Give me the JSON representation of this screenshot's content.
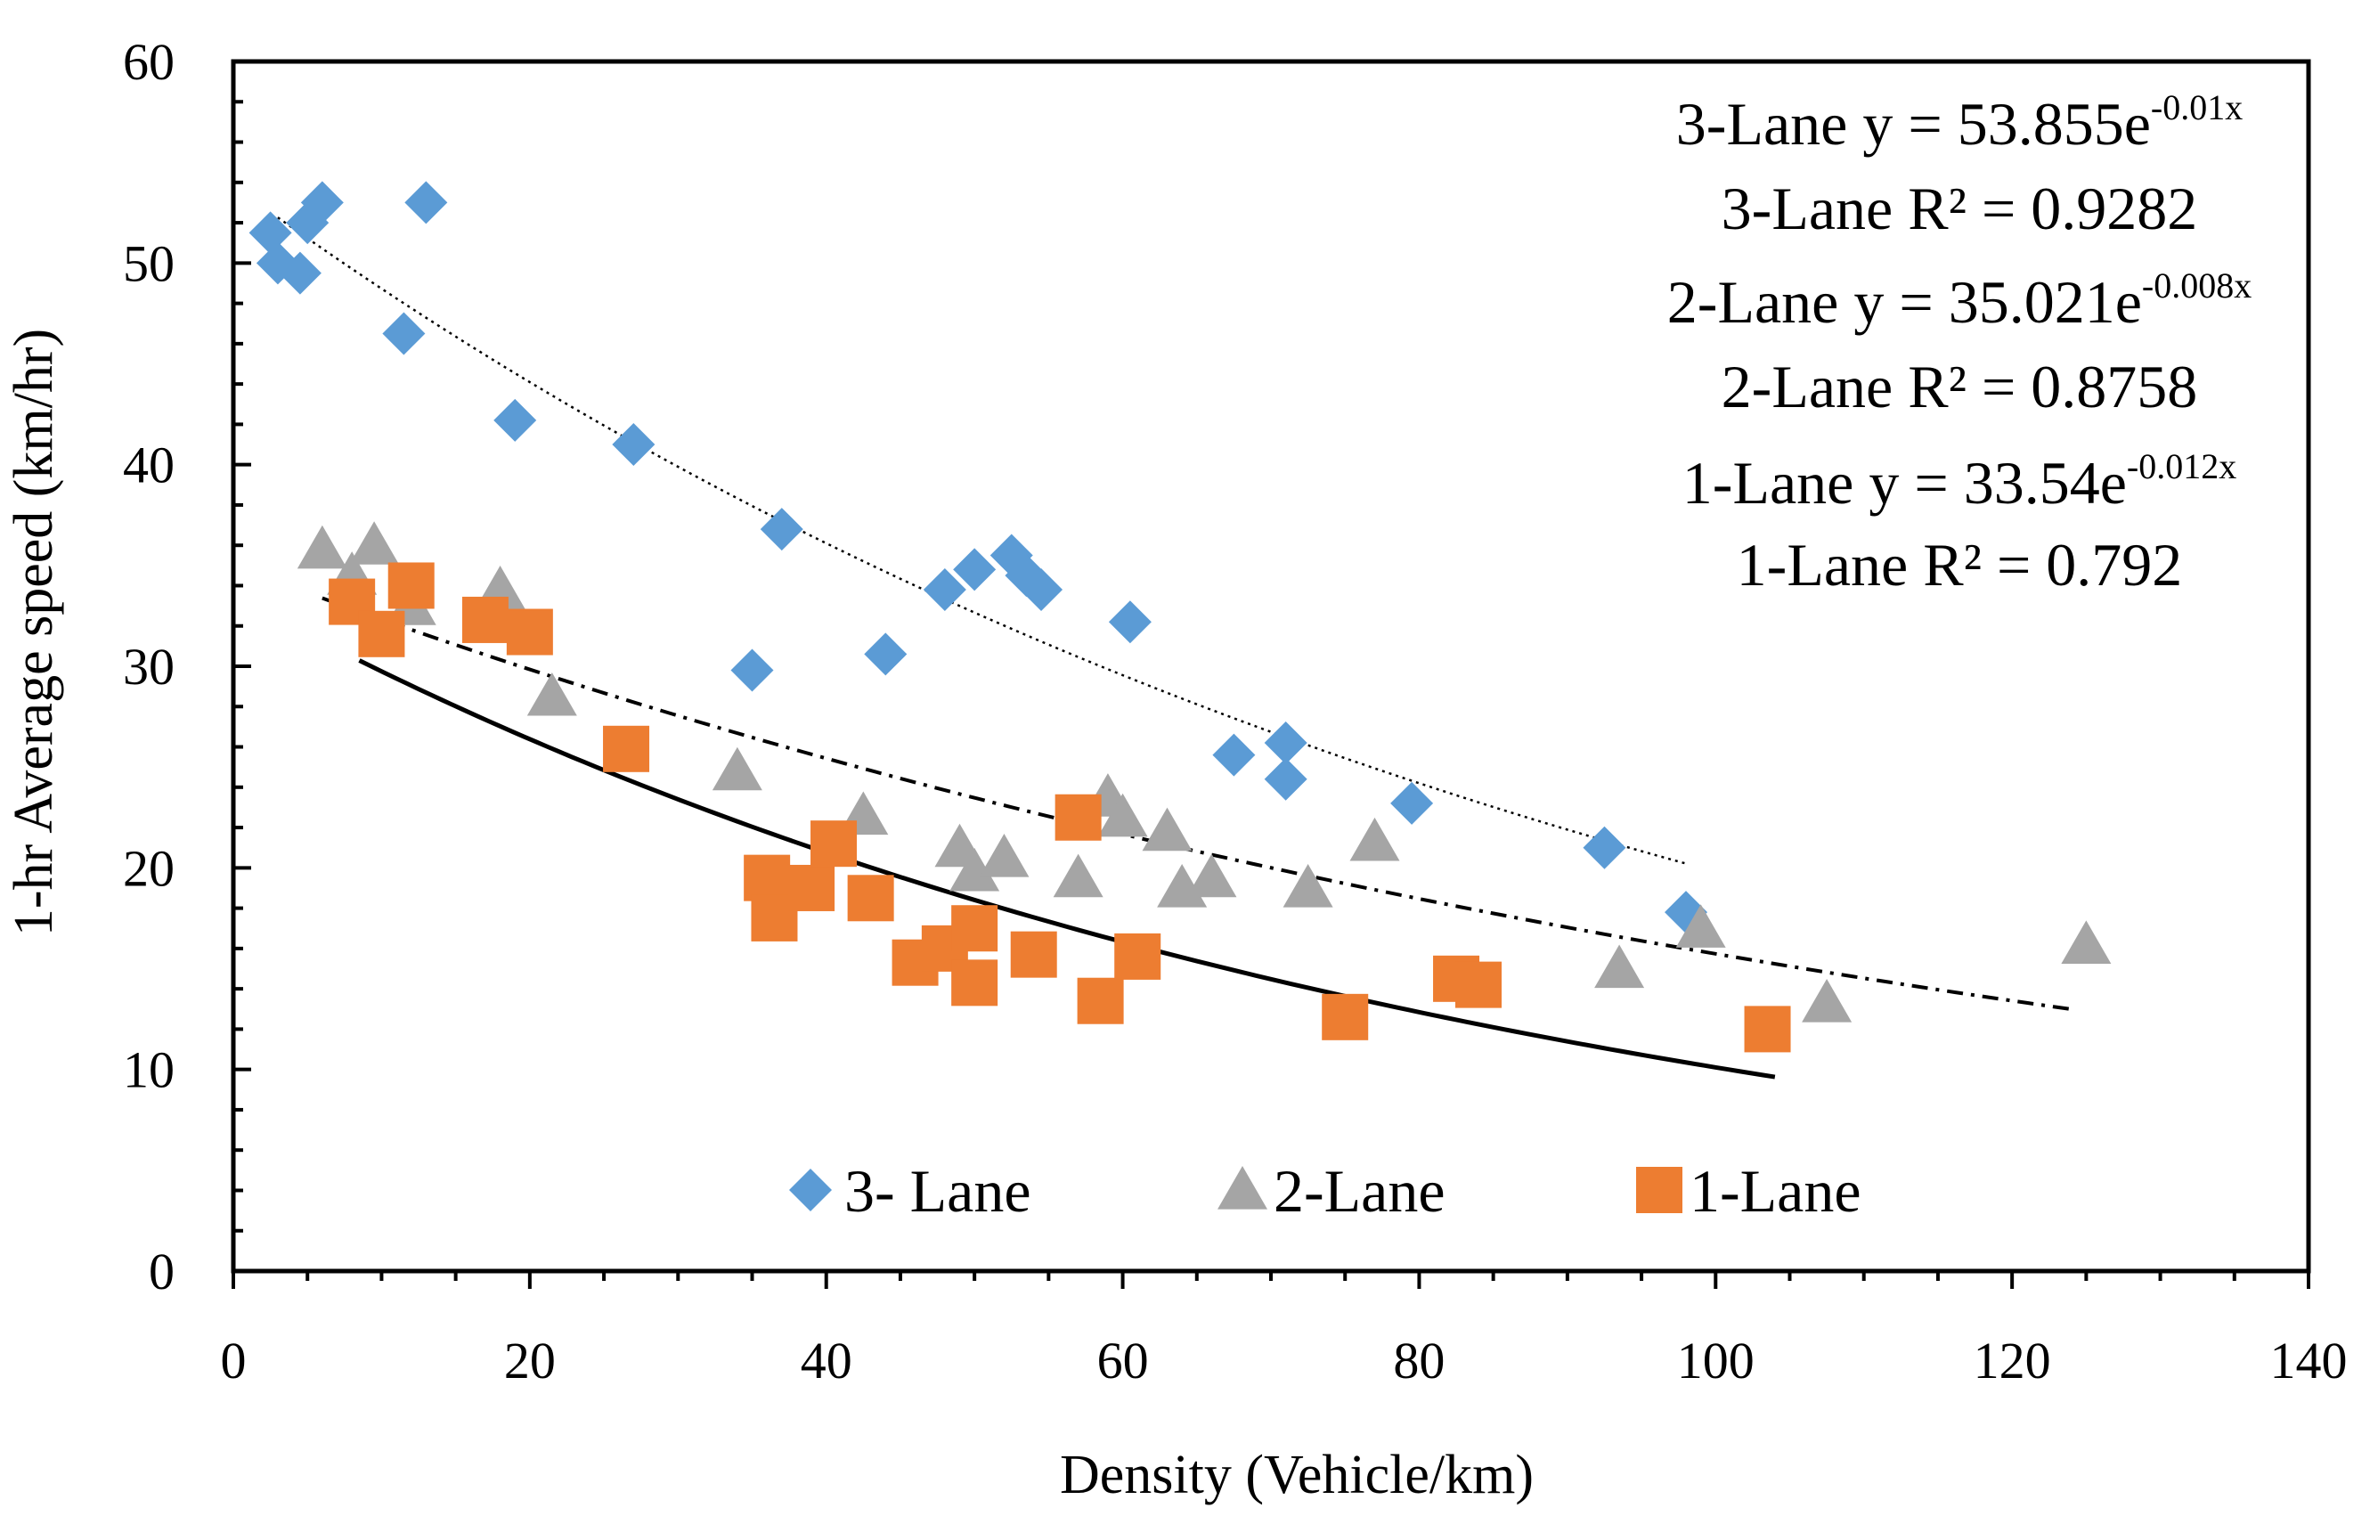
{
  "chart_data": {
    "type": "scatter",
    "title": "",
    "xlabel": "Density (Vehicle/km)",
    "ylabel": "1-hr Average speed (km/hr)",
    "xlim": [
      0,
      140
    ],
    "ylim": [
      0,
      60
    ],
    "x_ticks": [
      "0",
      "20",
      "40",
      "60",
      "80",
      "100",
      "120",
      "140"
    ],
    "y_ticks": [
      "0",
      "10",
      "20",
      "30",
      "40",
      "50",
      "60"
    ],
    "grid": false,
    "legend_position": "bottom-center",
    "colors": {
      "three_lane": "#5B9BD5",
      "two_lane": "#A5A5A5",
      "one_lane": "#ED7D31",
      "axis": "#000000"
    },
    "series": [
      {
        "name": "3- Lane",
        "marker": "diamond",
        "points": [
          [
            2.5,
            51.5
          ],
          [
            3,
            50
          ],
          [
            4.5,
            49.5
          ],
          [
            5,
            52
          ],
          [
            6,
            53
          ],
          [
            13,
            53
          ],
          [
            11.5,
            46.5
          ],
          [
            19,
            42.2
          ],
          [
            27,
            41
          ],
          [
            37,
            36.8
          ],
          [
            35,
            29.8
          ],
          [
            44,
            30.6
          ],
          [
            48,
            33.8
          ],
          [
            50,
            34.8
          ],
          [
            52.5,
            35.5
          ],
          [
            53.5,
            34.5
          ],
          [
            54.5,
            33.8
          ],
          [
            60.5,
            32.2
          ],
          [
            67.5,
            25.6
          ],
          [
            71,
            26.2
          ],
          [
            71,
            24.4
          ],
          [
            79.5,
            23.2
          ],
          [
            92.5,
            21
          ],
          [
            98,
            17.8
          ]
        ]
      },
      {
        "name": "2-Lane",
        "marker": "triangle",
        "points": [
          [
            6,
            35.8
          ],
          [
            8,
            34.5
          ],
          [
            9.5,
            36
          ],
          [
            12,
            33
          ],
          [
            18,
            33.8
          ],
          [
            21.5,
            28.5
          ],
          [
            34,
            24.8
          ],
          [
            42.5,
            22.6
          ],
          [
            49,
            21
          ],
          [
            50,
            19.8
          ],
          [
            52,
            20.5
          ],
          [
            57,
            19.5
          ],
          [
            59,
            23.5
          ],
          [
            60,
            22.5
          ],
          [
            63,
            21.8
          ],
          [
            64,
            19
          ],
          [
            66,
            19.5
          ],
          [
            72.5,
            19
          ],
          [
            77,
            21.3
          ],
          [
            93.5,
            15
          ],
          [
            99,
            17
          ],
          [
            107.5,
            13.3
          ],
          [
            125,
            16.2
          ]
        ]
      },
      {
        "name": "1-Lane",
        "marker": "square",
        "points": [
          [
            8,
            33.2
          ],
          [
            10,
            31.6
          ],
          [
            12,
            34
          ],
          [
            17,
            32.3
          ],
          [
            20,
            31.7
          ],
          [
            26.5,
            25.9
          ],
          [
            36,
            19.5
          ],
          [
            36.5,
            17.5
          ],
          [
            39,
            19
          ],
          [
            40.5,
            21.2
          ],
          [
            43,
            18.5
          ],
          [
            46,
            15.3
          ],
          [
            48,
            16
          ],
          [
            50,
            17
          ],
          [
            50,
            14.3
          ],
          [
            54,
            15.7
          ],
          [
            57,
            22.5
          ],
          [
            58.5,
            13.4
          ],
          [
            61,
            15.6
          ],
          [
            75,
            12.6
          ],
          [
            82.5,
            14.5
          ],
          [
            84,
            14.2
          ],
          [
            103.5,
            12
          ]
        ]
      }
    ],
    "trendlines": [
      {
        "series": "3- Lane",
        "a": 53.855,
        "b": -0.01,
        "x_range": [
          3,
          98
        ],
        "style": "dotted"
      },
      {
        "series": "2-Lane",
        "a": 35.021,
        "b": -0.008,
        "x_range": [
          6,
          124
        ],
        "style": "dash-dot"
      },
      {
        "series": "1-Lane",
        "a": 33.54,
        "b": -0.012,
        "x_range": [
          8.5,
          104
        ],
        "style": "solid"
      }
    ],
    "annotations": [
      {
        "prefix": "3-Lane y = 53.855e",
        "exp": "-0.01x"
      },
      {
        "prefix": "3-Lane R² = 0.9282",
        "exp": ""
      },
      {
        "prefix": "2-Lane y = 35.021e",
        "exp": "-0.008x"
      },
      {
        "prefix": "2-Lane R² = 0.8758",
        "exp": ""
      },
      {
        "prefix": "1-Lane y = 33.54e",
        "exp": "-0.012x"
      },
      {
        "prefix": "1-Lane R² = 0.792",
        "exp": ""
      }
    ]
  }
}
